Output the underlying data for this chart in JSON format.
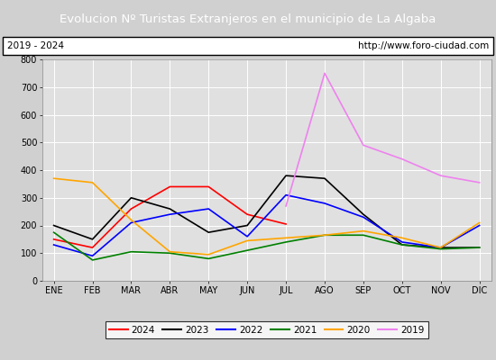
{
  "title": "Evolucion Nº Turistas Extranjeros en el municipio de La Algaba",
  "subtitle_left": "2019 - 2024",
  "subtitle_right": "http://www.foro-ciudad.com",
  "title_bg_color": "#4472c4",
  "title_text_color": "#ffffff",
  "months": [
    "ENE",
    "FEB",
    "MAR",
    "ABR",
    "MAY",
    "JUN",
    "JUL",
    "AGO",
    "SEP",
    "OCT",
    "NOV",
    "DIC"
  ],
  "ylim": [
    0,
    800
  ],
  "yticks": [
    0,
    100,
    200,
    300,
    400,
    500,
    600,
    700,
    800
  ],
  "series": {
    "2024": {
      "color": "red",
      "values": [
        150,
        120,
        260,
        340,
        340,
        240,
        205,
        null,
        null,
        null,
        null,
        null
      ]
    },
    "2023": {
      "color": "black",
      "values": [
        200,
        150,
        300,
        260,
        175,
        200,
        380,
        370,
        240,
        130,
        120,
        120
      ]
    },
    "2022": {
      "color": "blue",
      "values": [
        130,
        90,
        210,
        240,
        260,
        160,
        310,
        280,
        230,
        140,
        120,
        200
      ]
    },
    "2021": {
      "color": "green",
      "values": [
        175,
        75,
        105,
        100,
        80,
        110,
        140,
        165,
        165,
        130,
        115,
        120
      ]
    },
    "2020": {
      "color": "orange",
      "values": [
        370,
        355,
        220,
        105,
        95,
        145,
        155,
        165,
        180,
        155,
        120,
        210
      ]
    },
    "2019": {
      "color": "violet",
      "values": [
        null,
        null,
        null,
        null,
        null,
        null,
        270,
        750,
        490,
        440,
        380,
        355
      ]
    }
  },
  "legend_order": [
    "2024",
    "2023",
    "2022",
    "2021",
    "2020",
    "2019"
  ],
  "background_color": "#d0d0d0",
  "plot_bg_color": "#e0e0e0"
}
